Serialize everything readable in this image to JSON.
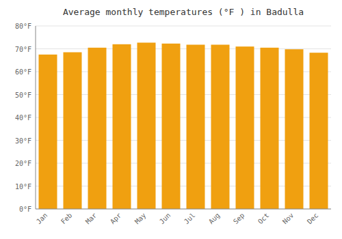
{
  "chart_data": {
    "type": "bar",
    "title": "Average monthly temperatures (°F ) in Badulla",
    "categories": [
      "Jan",
      "Feb",
      "Mar",
      "Apr",
      "May",
      "Jun",
      "Jul",
      "Aug",
      "Sep",
      "Oct",
      "Nov",
      "Dec"
    ],
    "values": [
      67.5,
      68.5,
      70.5,
      72.0,
      72.7,
      72.3,
      71.8,
      71.8,
      71.0,
      70.5,
      69.8,
      68.3
    ],
    "color": "#F0A010",
    "ylim": [
      0,
      80
    ],
    "yticks": [
      {
        "value": 0,
        "label": "0°F"
      },
      {
        "value": 10,
        "label": "10°F"
      },
      {
        "value": 20,
        "label": "20°F"
      },
      {
        "value": 30,
        "label": "30°F"
      },
      {
        "value": 40,
        "label": "40°F"
      },
      {
        "value": 50,
        "label": "50°F"
      },
      {
        "value": 60,
        "label": "60°F"
      },
      {
        "value": 70,
        "label": "70°F"
      },
      {
        "value": 80,
        "label": "80°F"
      }
    ],
    "grid": true
  }
}
